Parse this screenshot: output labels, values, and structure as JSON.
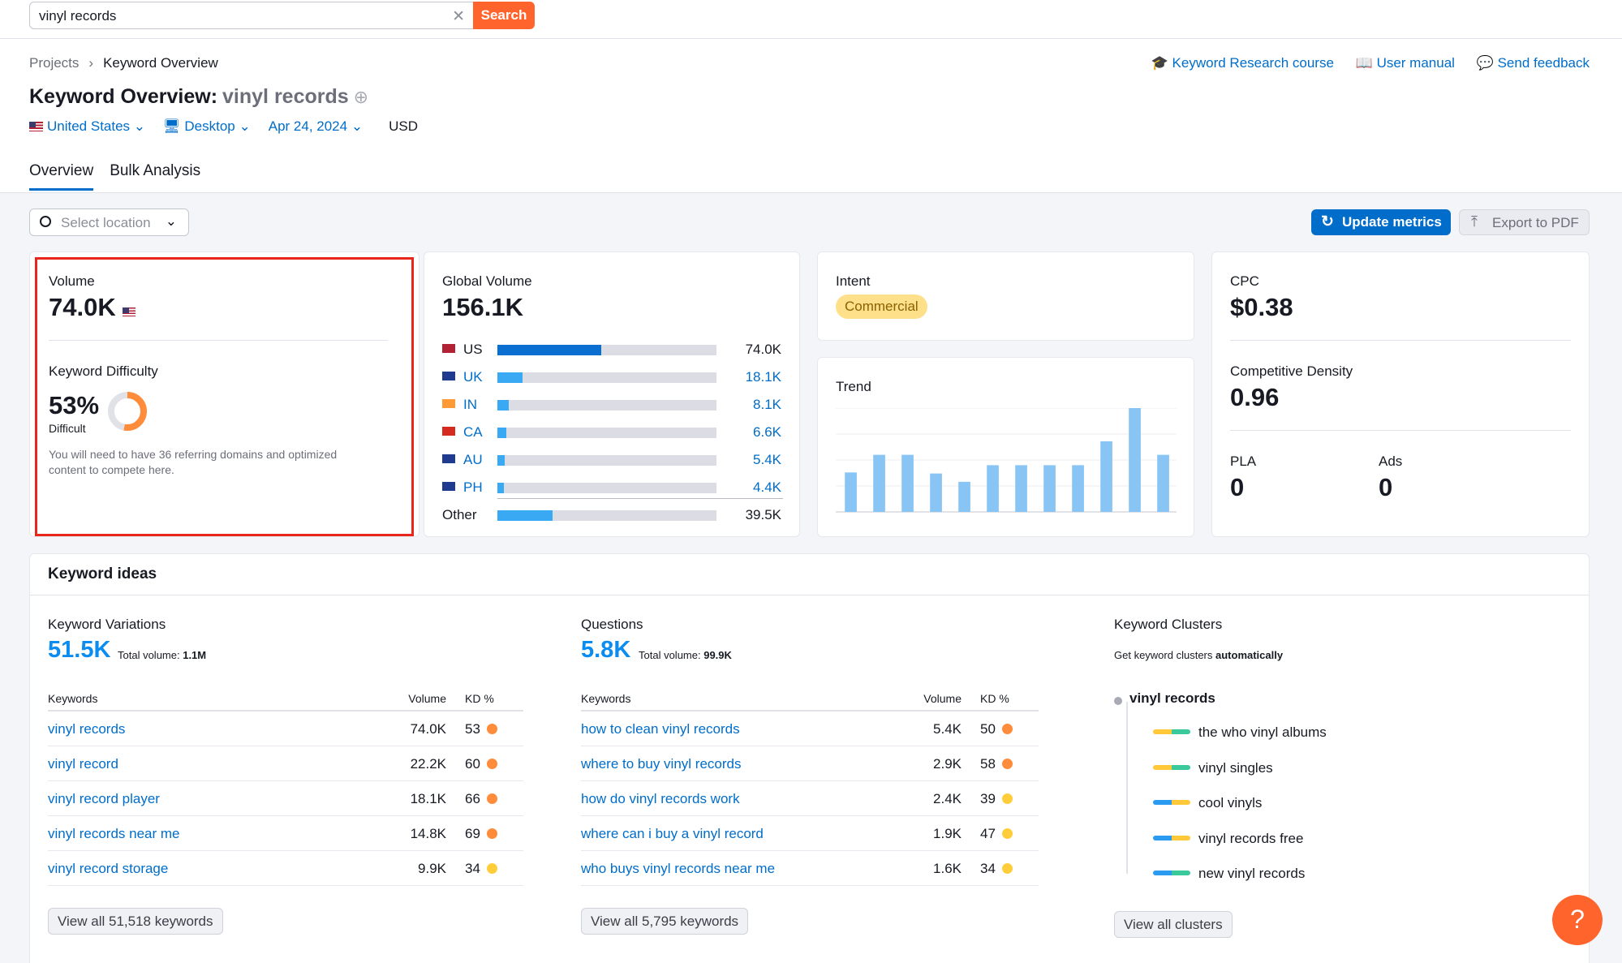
{
  "search": {
    "value": "vinyl records",
    "button": "Search"
  },
  "breadcrumb": {
    "root": "Projects",
    "current": "Keyword Overview"
  },
  "help_links": [
    "Keyword Research course",
    "User manual",
    "Send feedback"
  ],
  "title": {
    "prefix": "Keyword Overview:",
    "keyword": "vinyl records"
  },
  "filters": {
    "country": "United States",
    "device": "Desktop",
    "date": "Apr 24, 2024",
    "currency": "USD"
  },
  "tabs": [
    "Overview",
    "Bulk Analysis"
  ],
  "toolbar": {
    "location_placeholder": "Select location",
    "update": "Update metrics",
    "export": "Export to PDF"
  },
  "volume_card": {
    "volume_label": "Volume",
    "volume": "74.0K",
    "kd_label": "Keyword Difficulty",
    "kd": "53%",
    "kd_level": "Difficult",
    "kd_percent": 53,
    "kd_note": "You will need to have 36 referring domains and optimized content to compete here."
  },
  "global_volume": {
    "label": "Global Volume",
    "total": "156.1K",
    "rows": [
      {
        "code": "US",
        "value": "74.0K",
        "share": 0.474
      },
      {
        "code": "UK",
        "value": "18.1K",
        "share": 0.116
      },
      {
        "code": "IN",
        "value": "8.1K",
        "share": 0.052
      },
      {
        "code": "CA",
        "value": "6.6K",
        "share": 0.042
      },
      {
        "code": "AU",
        "value": "5.4K",
        "share": 0.035
      },
      {
        "code": "PH",
        "value": "4.4K",
        "share": 0.028
      }
    ],
    "other": {
      "label": "Other",
      "value": "39.5K",
      "share": 0.253
    }
  },
  "intent": {
    "label": "Intent",
    "value": "Commercial"
  },
  "trend": {
    "label": "Trend",
    "values": [
      0.38,
      0.55,
      0.55,
      0.37,
      0.29,
      0.45,
      0.45,
      0.45,
      0.45,
      0.68,
      1.0,
      0.55
    ]
  },
  "cpc_card": {
    "cpc_label": "CPC",
    "cpc": "$0.38",
    "cd_label": "Competitive Density",
    "cd": "0.96",
    "pla_label": "PLA",
    "pla": "0",
    "ads_label": "Ads",
    "ads": "0"
  },
  "ideas": {
    "title": "Keyword ideas",
    "variations": {
      "title": "Keyword Variations",
      "count": "51.5K",
      "total_label": "Total volume:",
      "total": "1.1M",
      "headers": [
        "Keywords",
        "Volume",
        "KD %"
      ],
      "rows": [
        {
          "kw": "vinyl records",
          "vol": "74.0K",
          "kd": "53",
          "color": "#ff8c3a"
        },
        {
          "kw": "vinyl record",
          "vol": "22.2K",
          "kd": "60",
          "color": "#ff8c3a"
        },
        {
          "kw": "vinyl record player",
          "vol": "18.1K",
          "kd": "66",
          "color": "#ff8c3a"
        },
        {
          "kw": "vinyl records near me",
          "vol": "14.8K",
          "kd": "69",
          "color": "#ff8c3a"
        },
        {
          "kw": "vinyl record storage",
          "vol": "9.9K",
          "kd": "34",
          "color": "#ffcc3a"
        }
      ],
      "view_all": "View all 51,518 keywords"
    },
    "questions": {
      "title": "Questions",
      "count": "5.8K",
      "total_label": "Total volume:",
      "total": "99.9K",
      "headers": [
        "Keywords",
        "Volume",
        "KD %"
      ],
      "rows": [
        {
          "kw": "how to clean vinyl records",
          "vol": "5.4K",
          "kd": "50",
          "color": "#ff8c3a"
        },
        {
          "kw": "where to buy vinyl records",
          "vol": "2.9K",
          "kd": "58",
          "color": "#ff8c3a"
        },
        {
          "kw": "how do vinyl records work",
          "vol": "2.4K",
          "kd": "39",
          "color": "#ffcc3a"
        },
        {
          "kw": "where can i buy a vinyl record",
          "vol": "1.9K",
          "kd": "47",
          "color": "#ffcc3a"
        },
        {
          "kw": "who buys vinyl records near me",
          "vol": "1.6K",
          "kd": "34",
          "color": "#ffcc3a"
        }
      ],
      "view_all": "View all 5,795 keywords"
    },
    "clusters": {
      "title": "Keyword Clusters",
      "subtitle_prefix": "Get keyword clusters",
      "subtitle_bold": "automatically",
      "root": "vinyl records",
      "items": [
        {
          "label": "the who vinyl albums",
          "c1": "#ffc93a",
          "c2": "#3ac99a"
        },
        {
          "label": "vinyl singles",
          "c1": "#ffc93a",
          "c2": "#3ac99a"
        },
        {
          "label": "cool vinyls",
          "c1": "#2a9bf0",
          "c2": "#ffc93a"
        },
        {
          "label": "vinyl records free",
          "c1": "#2a9bf0",
          "c2": "#ffc93a"
        },
        {
          "label": "new vinyl records",
          "c1": "#2a9bf0",
          "c2": "#3ac99a"
        }
      ],
      "view_all": "View all clusters"
    }
  },
  "help_fab": "?",
  "colors": {
    "accent": "#006dca",
    "brand": "#ff642d",
    "highlight": "#e8261c"
  }
}
